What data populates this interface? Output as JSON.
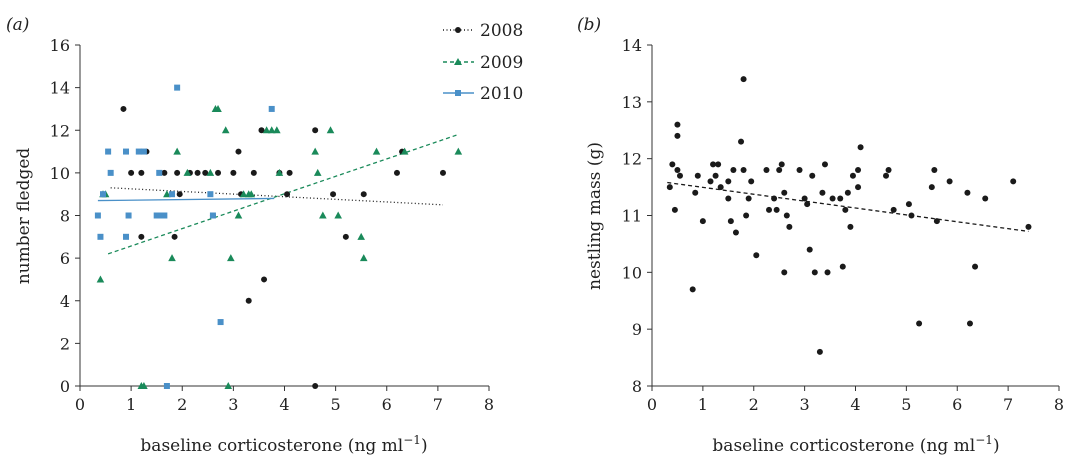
{
  "colors": {
    "s2008": "#1a1a1a",
    "s2009": "#1a8a5a",
    "s2010": "#4a90c8",
    "axis": "#333333",
    "fit_b": "#1a1a1a"
  },
  "chart_data": [
    {
      "panel": "(a)",
      "type": "scatter",
      "xlabel": "baseline corticosterone (ng ml",
      "xlabel_sup": "−1",
      "xlabel_end": ")",
      "ylabel": "number fledged",
      "xlim": [
        0,
        8
      ],
      "ylim": [
        0,
        16
      ],
      "xticks": [
        0,
        1,
        2,
        3,
        4,
        5,
        6,
        7,
        8
      ],
      "yticks": [
        0,
        2,
        4,
        6,
        8,
        10,
        12,
        14,
        16
      ],
      "legend_position": "top-right",
      "series": [
        {
          "name": "2008",
          "color_key": "s2008",
          "marker": "circle",
          "line_style": "dotted",
          "fit": {
            "x": [
              0.6,
              7.1
            ],
            "y": [
              9.3,
              8.5
            ]
          },
          "points": [
            [
              0.85,
              13
            ],
            [
              1.0,
              10
            ],
            [
              1.2,
              10
            ],
            [
              1.3,
              11
            ],
            [
              1.2,
              7
            ],
            [
              1.65,
              10
            ],
            [
              1.85,
              7
            ],
            [
              1.9,
              10
            ],
            [
              1.95,
              9
            ],
            [
              2.15,
              10
            ],
            [
              2.3,
              10
            ],
            [
              2.45,
              10
            ],
            [
              2.6,
              8
            ],
            [
              2.7,
              10
            ],
            [
              3.0,
              10
            ],
            [
              3.1,
              11
            ],
            [
              3.15,
              9
            ],
            [
              3.3,
              4
            ],
            [
              3.4,
              10
            ],
            [
              3.55,
              12
            ],
            [
              3.6,
              5
            ],
            [
              3.9,
              10
            ],
            [
              4.05,
              9
            ],
            [
              4.1,
              10
            ],
            [
              4.6,
              12
            ],
            [
              4.6,
              0
            ],
            [
              4.95,
              9
            ],
            [
              5.2,
              7
            ],
            [
              5.55,
              9
            ],
            [
              6.2,
              10
            ],
            [
              6.3,
              11
            ],
            [
              7.1,
              10
            ]
          ]
        },
        {
          "name": "2009",
          "color_key": "s2009",
          "marker": "triangle",
          "line_style": "dashed",
          "fit": {
            "x": [
              0.55,
              7.4
            ],
            "y": [
              6.2,
              11.8
            ]
          },
          "points": [
            [
              0.4,
              5
            ],
            [
              0.45,
              9
            ],
            [
              0.5,
              9
            ],
            [
              1.2,
              0
            ],
            [
              1.25,
              0
            ],
            [
              1.7,
              9
            ],
            [
              1.8,
              6
            ],
            [
              1.9,
              11
            ],
            [
              2.1,
              10
            ],
            [
              2.55,
              10
            ],
            [
              2.65,
              13
            ],
            [
              2.7,
              13
            ],
            [
              2.85,
              12
            ],
            [
              2.9,
              0
            ],
            [
              2.95,
              6
            ],
            [
              3.1,
              8
            ],
            [
              3.2,
              9
            ],
            [
              3.3,
              9
            ],
            [
              3.35,
              9
            ],
            [
              3.65,
              12
            ],
            [
              3.75,
              12
            ],
            [
              3.85,
              12
            ],
            [
              3.9,
              10
            ],
            [
              4.6,
              11
            ],
            [
              4.65,
              10
            ],
            [
              4.75,
              8
            ],
            [
              4.9,
              12
            ],
            [
              5.05,
              8
            ],
            [
              5.5,
              7
            ],
            [
              5.55,
              6
            ],
            [
              5.8,
              11
            ],
            [
              6.35,
              11
            ],
            [
              7.4,
              11
            ]
          ]
        },
        {
          "name": "2010",
          "color_key": "s2010",
          "marker": "square",
          "line_style": "solid",
          "fit": {
            "x": [
              0.35,
              3.8
            ],
            "y": [
              8.7,
              8.8
            ]
          },
          "points": [
            [
              0.35,
              8
            ],
            [
              0.4,
              7
            ],
            [
              0.45,
              9
            ],
            [
              0.55,
              11
            ],
            [
              0.6,
              10
            ],
            [
              0.9,
              11
            ],
            [
              0.95,
              8
            ],
            [
              0.9,
              7
            ],
            [
              1.15,
              11
            ],
            [
              1.25,
              11
            ],
            [
              1.5,
              8
            ],
            [
              1.55,
              10
            ],
            [
              1.6,
              8
            ],
            [
              1.65,
              8
            ],
            [
              1.7,
              0
            ],
            [
              1.8,
              9
            ],
            [
              1.9,
              14
            ],
            [
              2.55,
              9
            ],
            [
              2.6,
              8
            ],
            [
              2.75,
              3
            ],
            [
              3.75,
              13
            ]
          ]
        }
      ]
    },
    {
      "panel": "(b)",
      "type": "scatter",
      "xlabel": "baseline corticosterone (ng ml",
      "xlabel_sup": "−1",
      "xlabel_end": ")",
      "ylabel": "nestling mass (g)",
      "xlim": [
        0,
        8
      ],
      "ylim": [
        8,
        14
      ],
      "xticks": [
        0,
        1,
        2,
        3,
        4,
        5,
        6,
        7,
        8
      ],
      "yticks": [
        8,
        9,
        10,
        11,
        12,
        13,
        14
      ],
      "series": [
        {
          "marker": "circle",
          "color_key": "fit_b",
          "line_style": "dashed",
          "fit": {
            "x": [
              0.3,
              7.4
            ],
            "y": [
              11.58,
              10.72
            ]
          },
          "points": [
            [
              0.35,
              11.5
            ],
            [
              0.4,
              11.9
            ],
            [
              0.45,
              11.1
            ],
            [
              0.5,
              12.4
            ],
            [
              0.5,
              12.6
            ],
            [
              0.5,
              11.8
            ],
            [
              0.55,
              11.7
            ],
            [
              0.8,
              9.7
            ],
            [
              0.85,
              11.4
            ],
            [
              0.9,
              11.7
            ],
            [
              1.0,
              10.9
            ],
            [
              1.15,
              11.6
            ],
            [
              1.2,
              11.9
            ],
            [
              1.25,
              11.7
            ],
            [
              1.3,
              11.9
            ],
            [
              1.35,
              11.5
            ],
            [
              1.5,
              11.6
            ],
            [
              1.5,
              11.3
            ],
            [
              1.55,
              10.9
            ],
            [
              1.6,
              11.8
            ],
            [
              1.65,
              10.7
            ],
            [
              1.75,
              12.3
            ],
            [
              1.8,
              13.4
            ],
            [
              1.8,
              11.8
            ],
            [
              1.85,
              11.0
            ],
            [
              1.9,
              11.3
            ],
            [
              1.95,
              11.6
            ],
            [
              2.05,
              10.3
            ],
            [
              2.25,
              11.8
            ],
            [
              2.3,
              11.1
            ],
            [
              2.4,
              11.3
            ],
            [
              2.45,
              11.1
            ],
            [
              2.5,
              11.8
            ],
            [
              2.55,
              11.9
            ],
            [
              2.6,
              11.4
            ],
            [
              2.6,
              10.0
            ],
            [
              2.65,
              11.0
            ],
            [
              2.7,
              10.8
            ],
            [
              2.9,
              11.8
            ],
            [
              3.0,
              11.3
            ],
            [
              3.05,
              11.2
            ],
            [
              3.1,
              10.4
            ],
            [
              3.15,
              11.7
            ],
            [
              3.2,
              10.0
            ],
            [
              3.3,
              8.6
            ],
            [
              3.35,
              11.4
            ],
            [
              3.4,
              11.9
            ],
            [
              3.45,
              10.0
            ],
            [
              3.55,
              11.3
            ],
            [
              3.7,
              11.3
            ],
            [
              3.75,
              10.1
            ],
            [
              3.8,
              11.1
            ],
            [
              3.85,
              11.4
            ],
            [
              3.9,
              10.8
            ],
            [
              3.95,
              11.7
            ],
            [
              4.05,
              11.5
            ],
            [
              4.05,
              11.8
            ],
            [
              4.1,
              12.2
            ],
            [
              4.6,
              11.7
            ],
            [
              4.65,
              11.8
            ],
            [
              4.75,
              11.1
            ],
            [
              5.05,
              11.2
            ],
            [
              5.1,
              11.0
            ],
            [
              5.25,
              9.1
            ],
            [
              5.5,
              11.5
            ],
            [
              5.55,
              11.8
            ],
            [
              5.6,
              10.9
            ],
            [
              5.85,
              11.6
            ],
            [
              6.2,
              11.4
            ],
            [
              6.25,
              9.1
            ],
            [
              6.35,
              10.1
            ],
            [
              6.55,
              11.3
            ],
            [
              7.1,
              11.6
            ],
            [
              7.4,
              10.8
            ]
          ]
        }
      ]
    }
  ]
}
